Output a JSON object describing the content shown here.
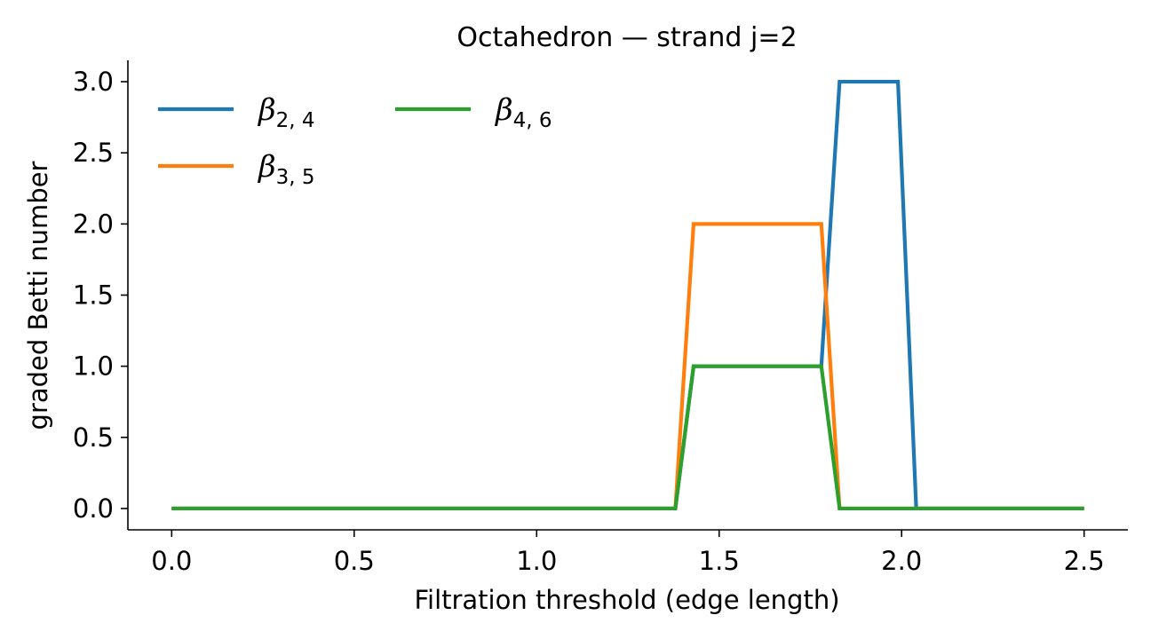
{
  "chart_data": {
    "type": "line",
    "title": "Octahedron — strand j=2",
    "xlabel": "Filtration threshold (edge length)",
    "ylabel": "graded Betti number",
    "xlim": [
      -0.12,
      2.62
    ],
    "ylim": [
      -0.15,
      3.15
    ],
    "xticks": [
      0.0,
      0.5,
      1.0,
      1.5,
      2.0,
      2.5
    ],
    "xtick_labels": [
      "0.0",
      "0.5",
      "1.0",
      "1.5",
      "2.0",
      "2.5"
    ],
    "yticks": [
      0.0,
      0.5,
      1.0,
      1.5,
      2.0,
      2.5,
      3.0
    ],
    "ytick_labels": [
      "0.0",
      "0.5",
      "1.0",
      "1.5",
      "2.0",
      "2.5",
      "3.0"
    ],
    "grid": false,
    "legend_position": "top-left",
    "series": [
      {
        "name": "β2,4",
        "symbol": "β",
        "subscript": "2, 4",
        "color": "#1f77b4",
        "x": [
          0.0,
          1.38,
          1.43,
          1.78,
          1.83,
          1.99,
          2.04,
          2.5
        ],
        "values": [
          0,
          0,
          1,
          1,
          3,
          3,
          0,
          0
        ]
      },
      {
        "name": "β3,5",
        "symbol": "β",
        "subscript": "3, 5",
        "color": "#ff7f0e",
        "x": [
          0.0,
          1.38,
          1.43,
          1.78,
          1.83,
          2.5
        ],
        "values": [
          0,
          0,
          2,
          2,
          0,
          0
        ]
      },
      {
        "name": "β4,6",
        "symbol": "β",
        "subscript": "4, 6",
        "color": "#2ca02c",
        "x": [
          0.0,
          1.38,
          1.43,
          1.78,
          1.83,
          2.5
        ],
        "values": [
          0,
          0,
          1,
          1,
          0,
          0
        ]
      }
    ]
  }
}
